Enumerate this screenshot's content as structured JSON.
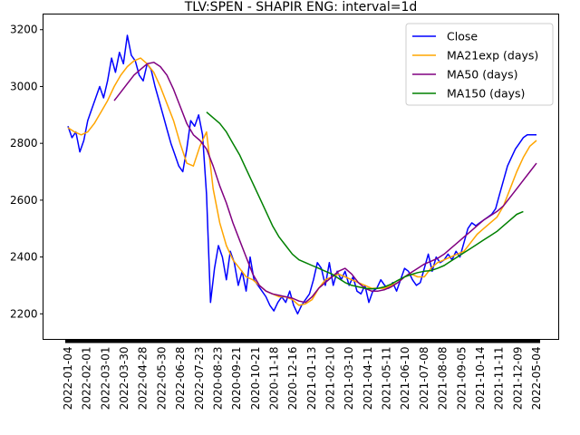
{
  "chart_data": {
    "type": "line",
    "title": "TLV:SPEN - SHAPIR      ENG: interval=1d",
    "xlabel": "",
    "ylabel": "",
    "ylim": [
      2110,
      3255
    ],
    "y_ticks": [
      2200,
      2400,
      2600,
      2800,
      3000,
      3200
    ],
    "x_tick_labels": [
      "2022-01-04",
      "2022-02-01",
      "2022-03-01",
      "2022-03-30",
      "2022-04-28",
      "2022-05-30",
      "2022-06-28",
      "2022-07-23",
      "2020-08-23",
      "2020-09-21",
      "2020-10-21",
      "2020-11-18",
      "2020-12-16",
      "2021-01-13",
      "2021-02-10",
      "2021-03-10",
      "2021-04-11",
      "2021-05-11",
      "2021-06-10",
      "2021-07-08",
      "2021-08-08",
      "2021-09-05",
      "2021-10-14",
      "2021-11-11",
      "2021-12-09",
      "2022-05-04"
    ],
    "legend_position": "top-right",
    "grid": false,
    "series": [
      {
        "name": "Close",
        "color": "#0000ff",
        "points": [
          [
            0,
            2860
          ],
          [
            0.3,
            2820
          ],
          [
            0.6,
            2840
          ],
          [
            0.9,
            2770
          ],
          [
            1.2,
            2810
          ],
          [
            1.5,
            2880
          ],
          [
            1.8,
            2920
          ],
          [
            2.1,
            2960
          ],
          [
            2.4,
            3000
          ],
          [
            2.7,
            2960
          ],
          [
            3.0,
            3020
          ],
          [
            3.3,
            3100
          ],
          [
            3.6,
            3050
          ],
          [
            3.9,
            3120
          ],
          [
            4.2,
            3080
          ],
          [
            4.5,
            3180
          ],
          [
            4.8,
            3110
          ],
          [
            5.1,
            3090
          ],
          [
            5.4,
            3040
          ],
          [
            5.7,
            3020
          ],
          [
            6.0,
            3080
          ],
          [
            6.3,
            3060
          ],
          [
            6.6,
            3000
          ],
          [
            6.9,
            2950
          ],
          [
            7.2,
            2900
          ],
          [
            7.5,
            2850
          ],
          [
            7.8,
            2800
          ],
          [
            8.1,
            2760
          ],
          [
            8.4,
            2720
          ],
          [
            8.7,
            2700
          ],
          [
            9.0,
            2780
          ],
          [
            9.3,
            2880
          ],
          [
            9.6,
            2860
          ],
          [
            9.9,
            2900
          ],
          [
            10.2,
            2830
          ],
          [
            10.5,
            2620
          ],
          [
            10.8,
            2240
          ],
          [
            11.1,
            2360
          ],
          [
            11.4,
            2440
          ],
          [
            11.7,
            2400
          ],
          [
            12.0,
            2320
          ],
          [
            12.3,
            2420
          ],
          [
            12.6,
            2380
          ],
          [
            12.9,
            2300
          ],
          [
            13.2,
            2350
          ],
          [
            13.5,
            2280
          ],
          [
            13.8,
            2400
          ],
          [
            14.1,
            2320
          ],
          [
            14.4,
            2300
          ],
          [
            14.7,
            2280
          ],
          [
            15.0,
            2260
          ],
          [
            15.3,
            2230
          ],
          [
            15.6,
            2210
          ],
          [
            15.9,
            2240
          ],
          [
            16.2,
            2260
          ],
          [
            16.5,
            2240
          ],
          [
            16.8,
            2280
          ],
          [
            17.1,
            2230
          ],
          [
            17.4,
            2200
          ],
          [
            17.7,
            2230
          ],
          [
            18.0,
            2250
          ],
          [
            18.3,
            2270
          ],
          [
            18.6,
            2320
          ],
          [
            18.9,
            2380
          ],
          [
            19.2,
            2360
          ],
          [
            19.5,
            2300
          ],
          [
            19.8,
            2380
          ],
          [
            20.1,
            2300
          ],
          [
            20.4,
            2350
          ],
          [
            20.7,
            2320
          ],
          [
            21.0,
            2350
          ],
          [
            21.3,
            2300
          ],
          [
            21.6,
            2330
          ],
          [
            21.9,
            2280
          ],
          [
            22.2,
            2270
          ],
          [
            22.5,
            2300
          ],
          [
            22.8,
            2240
          ],
          [
            23.1,
            2280
          ],
          [
            23.4,
            2290
          ],
          [
            23.7,
            2320
          ],
          [
            24.0,
            2300
          ],
          [
            24.3,
            2290
          ],
          [
            24.6,
            2310
          ],
          [
            24.9,
            2280
          ],
          [
            25.2,
            2320
          ],
          [
            25.5,
            2360
          ],
          [
            25.8,
            2350
          ],
          [
            26.1,
            2320
          ],
          [
            26.4,
            2300
          ],
          [
            26.7,
            2310
          ],
          [
            27.0,
            2360
          ],
          [
            27.3,
            2410
          ],
          [
            27.6,
            2350
          ],
          [
            27.9,
            2400
          ],
          [
            28.2,
            2380
          ],
          [
            28.5,
            2390
          ],
          [
            28.8,
            2410
          ],
          [
            29.1,
            2390
          ],
          [
            29.4,
            2420
          ],
          [
            29.7,
            2400
          ],
          [
            30.0,
            2450
          ],
          [
            30.3,
            2500
          ],
          [
            30.6,
            2520
          ],
          [
            30.9,
            2510
          ],
          [
            31.2,
            2520
          ],
          [
            31.5,
            2530
          ],
          [
            31.8,
            2540
          ],
          [
            32.1,
            2550
          ],
          [
            32.4,
            2570
          ],
          [
            32.7,
            2620
          ],
          [
            33.0,
            2670
          ],
          [
            33.3,
            2720
          ],
          [
            33.6,
            2750
          ],
          [
            33.9,
            2780
          ],
          [
            34.2,
            2800
          ],
          [
            34.5,
            2820
          ],
          [
            34.8,
            2830
          ],
          [
            35.5,
            2830
          ]
        ]
      },
      {
        "name": "MA21exp (days)",
        "color": "#ffa500",
        "points": [
          [
            0,
            2855
          ],
          [
            0.5,
            2840
          ],
          [
            1.0,
            2830
          ],
          [
            1.5,
            2840
          ],
          [
            2.0,
            2870
          ],
          [
            2.5,
            2910
          ],
          [
            3.0,
            2950
          ],
          [
            3.5,
            3000
          ],
          [
            4.0,
            3040
          ],
          [
            4.5,
            3070
          ],
          [
            5.0,
            3090
          ],
          [
            5.5,
            3100
          ],
          [
            6.0,
            3080
          ],
          [
            6.5,
            3050
          ],
          [
            7.0,
            3000
          ],
          [
            7.5,
            2940
          ],
          [
            8.0,
            2880
          ],
          [
            8.5,
            2800
          ],
          [
            9.0,
            2730
          ],
          [
            9.5,
            2720
          ],
          [
            10.0,
            2790
          ],
          [
            10.5,
            2840
          ],
          [
            11.0,
            2640
          ],
          [
            11.5,
            2520
          ],
          [
            12.0,
            2440
          ],
          [
            12.5,
            2390
          ],
          [
            13.0,
            2360
          ],
          [
            13.5,
            2330
          ],
          [
            14.0,
            2320
          ],
          [
            14.5,
            2300
          ],
          [
            15.0,
            2280
          ],
          [
            15.5,
            2270
          ],
          [
            16.0,
            2260
          ],
          [
            16.5,
            2260
          ],
          [
            17.0,
            2250
          ],
          [
            17.5,
            2230
          ],
          [
            18.0,
            2235
          ],
          [
            18.5,
            2250
          ],
          [
            19.0,
            2290
          ],
          [
            19.5,
            2320
          ],
          [
            20.0,
            2330
          ],
          [
            20.5,
            2340
          ],
          [
            21.0,
            2330
          ],
          [
            21.5,
            2320
          ],
          [
            22.0,
            2310
          ],
          [
            22.5,
            2300
          ],
          [
            23.0,
            2290
          ],
          [
            23.5,
            2290
          ],
          [
            24.0,
            2290
          ],
          [
            24.5,
            2300
          ],
          [
            25.0,
            2310
          ],
          [
            25.5,
            2330
          ],
          [
            26.0,
            2340
          ],
          [
            26.5,
            2330
          ],
          [
            27.0,
            2330
          ],
          [
            27.5,
            2360
          ],
          [
            28.0,
            2380
          ],
          [
            28.5,
            2390
          ],
          [
            29.0,
            2400
          ],
          [
            29.5,
            2410
          ],
          [
            30.0,
            2420
          ],
          [
            30.5,
            2450
          ],
          [
            31.0,
            2480
          ],
          [
            31.5,
            2500
          ],
          [
            32.0,
            2520
          ],
          [
            32.5,
            2540
          ],
          [
            33.0,
            2580
          ],
          [
            33.5,
            2640
          ],
          [
            34.0,
            2700
          ],
          [
            34.5,
            2750
          ],
          [
            35.0,
            2790
          ],
          [
            35.5,
            2810
          ]
        ]
      },
      {
        "name": "MA50 (days)",
        "color": "#800080",
        "points": [
          [
            3.5,
            2950
          ],
          [
            4.0,
            2980
          ],
          [
            4.5,
            3010
          ],
          [
            5.0,
            3040
          ],
          [
            5.5,
            3060
          ],
          [
            6.0,
            3080
          ],
          [
            6.5,
            3085
          ],
          [
            7.0,
            3070
          ],
          [
            7.5,
            3040
          ],
          [
            8.0,
            2990
          ],
          [
            8.5,
            2930
          ],
          [
            9.0,
            2870
          ],
          [
            9.5,
            2830
          ],
          [
            10.0,
            2810
          ],
          [
            10.5,
            2780
          ],
          [
            11.0,
            2720
          ],
          [
            11.5,
            2650
          ],
          [
            12.0,
            2590
          ],
          [
            12.5,
            2520
          ],
          [
            13.0,
            2460
          ],
          [
            13.5,
            2400
          ],
          [
            14.0,
            2340
          ],
          [
            14.5,
            2300
          ],
          [
            15.0,
            2280
          ],
          [
            15.5,
            2270
          ],
          [
            16.0,
            2265
          ],
          [
            16.5,
            2260
          ],
          [
            17.0,
            2255
          ],
          [
            17.5,
            2245
          ],
          [
            18.0,
            2240
          ],
          [
            18.5,
            2260
          ],
          [
            19.0,
            2290
          ],
          [
            19.5,
            2310
          ],
          [
            20.0,
            2330
          ],
          [
            20.5,
            2350
          ],
          [
            21.0,
            2360
          ],
          [
            21.5,
            2340
          ],
          [
            22.0,
            2310
          ],
          [
            22.5,
            2290
          ],
          [
            23.0,
            2280
          ],
          [
            23.5,
            2280
          ],
          [
            24.0,
            2285
          ],
          [
            24.5,
            2295
          ],
          [
            25.0,
            2310
          ],
          [
            25.5,
            2330
          ],
          [
            26.0,
            2345
          ],
          [
            26.5,
            2360
          ],
          [
            27.0,
            2375
          ],
          [
            27.5,
            2385
          ],
          [
            28.0,
            2395
          ],
          [
            28.5,
            2410
          ],
          [
            29.0,
            2430
          ],
          [
            29.5,
            2450
          ],
          [
            30.0,
            2470
          ],
          [
            30.5,
            2490
          ],
          [
            31.0,
            2510
          ],
          [
            31.5,
            2530
          ],
          [
            32.0,
            2545
          ],
          [
            32.5,
            2560
          ],
          [
            33.0,
            2580
          ],
          [
            33.5,
            2610
          ],
          [
            34.0,
            2640
          ],
          [
            34.5,
            2670
          ],
          [
            35.0,
            2700
          ],
          [
            35.5,
            2730
          ]
        ]
      },
      {
        "name": "MA150 (days)",
        "color": "#008000",
        "points": [
          [
            10.5,
            2910
          ],
          [
            11.0,
            2890
          ],
          [
            11.5,
            2870
          ],
          [
            12.0,
            2840
          ],
          [
            12.5,
            2800
          ],
          [
            13.0,
            2760
          ],
          [
            13.5,
            2710
          ],
          [
            14.0,
            2660
          ],
          [
            14.5,
            2610
          ],
          [
            15.0,
            2560
          ],
          [
            15.5,
            2510
          ],
          [
            16.0,
            2470
          ],
          [
            16.5,
            2440
          ],
          [
            17.0,
            2410
          ],
          [
            17.5,
            2390
          ],
          [
            18.0,
            2380
          ],
          [
            18.5,
            2370
          ],
          [
            19.0,
            2360
          ],
          [
            19.5,
            2350
          ],
          [
            20.0,
            2340
          ],
          [
            20.5,
            2325
          ],
          [
            21.0,
            2310
          ],
          [
            21.5,
            2300
          ],
          [
            22.0,
            2295
          ],
          [
            22.5,
            2290
          ],
          [
            23.0,
            2288
          ],
          [
            23.5,
            2290
          ],
          [
            24.0,
            2295
          ],
          [
            24.5,
            2305
          ],
          [
            25.0,
            2318
          ],
          [
            25.5,
            2330
          ],
          [
            26.0,
            2338
          ],
          [
            26.5,
            2345
          ],
          [
            27.0,
            2350
          ],
          [
            27.5,
            2352
          ],
          [
            28.0,
            2360
          ],
          [
            28.5,
            2370
          ],
          [
            29.0,
            2385
          ],
          [
            29.5,
            2400
          ],
          [
            30.0,
            2415
          ],
          [
            30.5,
            2430
          ],
          [
            31.0,
            2445
          ],
          [
            31.5,
            2460
          ],
          [
            32.0,
            2475
          ],
          [
            32.5,
            2490
          ],
          [
            33.0,
            2510
          ],
          [
            33.5,
            2530
          ],
          [
            34.0,
            2550
          ],
          [
            34.5,
            2560
          ]
        ]
      }
    ]
  }
}
